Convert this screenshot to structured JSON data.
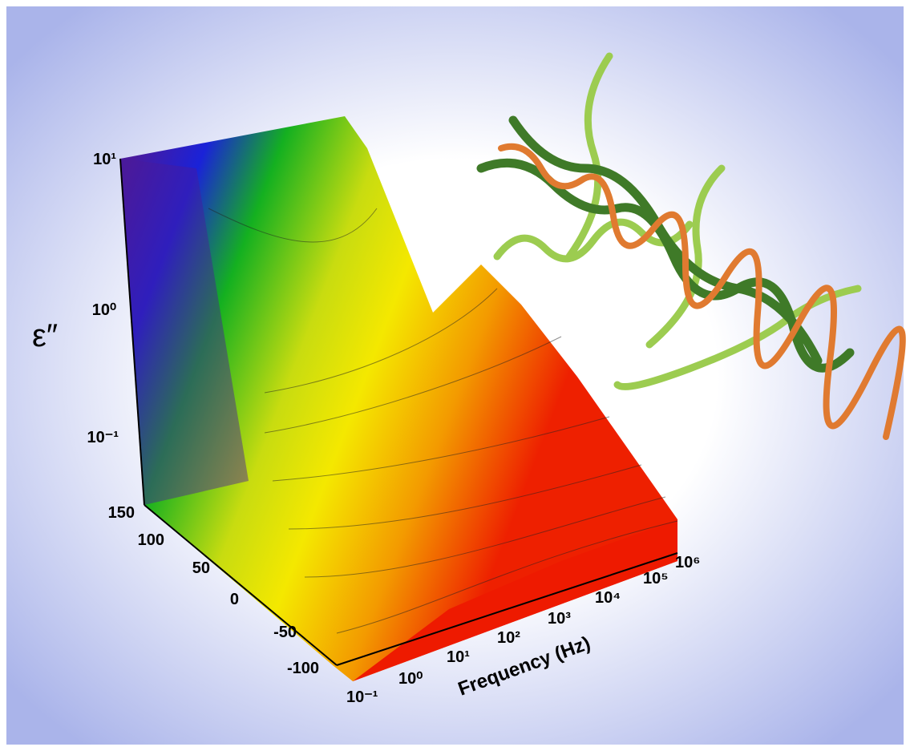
{
  "axes": {
    "epsilon": {
      "label": "ε″",
      "ticks": [
        "10¹",
        "10⁰",
        "10⁻¹"
      ]
    },
    "temperature": {
      "ticks": [
        "150",
        "100",
        "50",
        "0",
        "-50",
        "-100"
      ]
    },
    "frequency": {
      "label": "Frequency (Hz)",
      "ticks": [
        "10⁻¹",
        "10⁰",
        "10¹",
        "10²",
        "10³",
        "10⁴",
        "10⁵",
        "10⁶"
      ]
    }
  }
}
